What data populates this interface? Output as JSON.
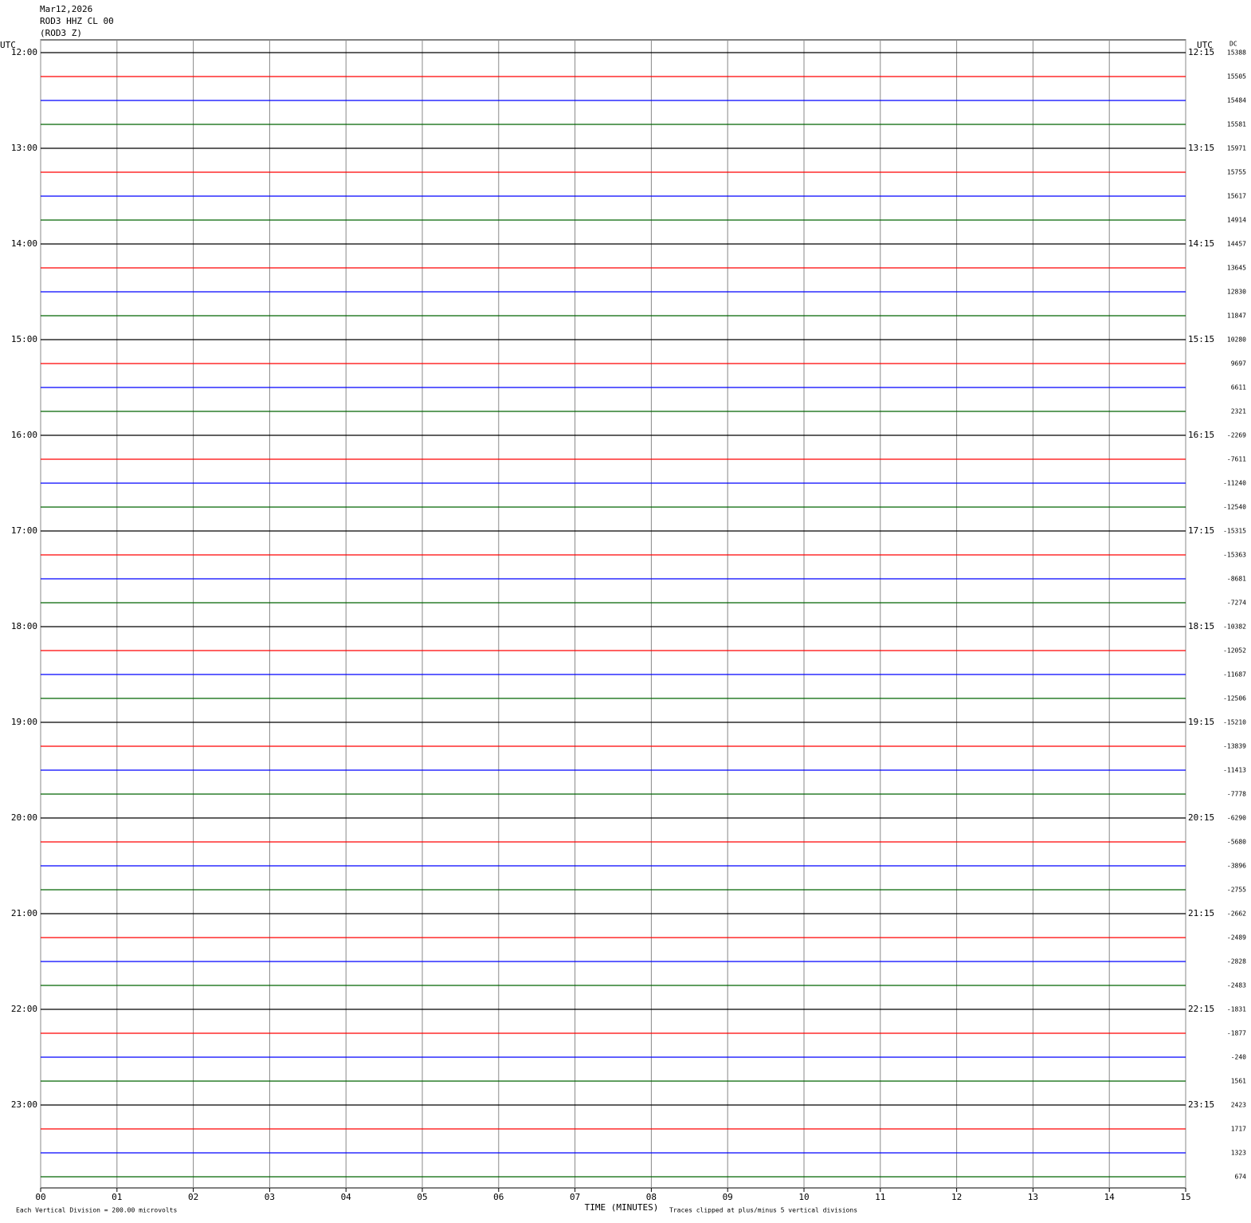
{
  "chart_data": {
    "type": "helicorder",
    "title_lines": [
      "Mar12,2026",
      "ROD3 HHZ CL 00",
      "(ROD3 Z)"
    ],
    "left_axis_label": "UTC",
    "right_axis_label": "UTC",
    "dc_label": "DC",
    "xlabel": "TIME (MINUTES)",
    "scale_note": "Each Vertical Division =  200.00 microvolts",
    "clip_note": "Traces clipped at plus/minus 5 vertical divisions",
    "xlim": [
      0,
      15
    ],
    "xticks": [
      {
        "value": 0,
        "label": "00"
      },
      {
        "value": 1,
        "label": "01"
      },
      {
        "value": 2,
        "label": "02"
      },
      {
        "value": 3,
        "label": "03"
      },
      {
        "value": 4,
        "label": "04"
      },
      {
        "value": 5,
        "label": "05"
      },
      {
        "value": 6,
        "label": "06"
      },
      {
        "value": 7,
        "label": "07"
      },
      {
        "value": 8,
        "label": "08"
      },
      {
        "value": 9,
        "label": "09"
      },
      {
        "value": 10,
        "label": "10"
      },
      {
        "value": 11,
        "label": "11"
      },
      {
        "value": 12,
        "label": "12"
      },
      {
        "value": 13,
        "label": "13"
      },
      {
        "value": 14,
        "label": "14"
      },
      {
        "value": 15,
        "label": "15"
      }
    ],
    "grid": true,
    "trace_colors": [
      "#000000",
      "#ff0000",
      "#0000ff",
      "#006400"
    ],
    "left_times": [
      "12:00",
      "13:00",
      "14:00",
      "15:00",
      "16:00",
      "17:00",
      "18:00",
      "19:00",
      "20:00",
      "21:00",
      "22:00",
      "23:00"
    ],
    "right_times": [
      "12:15",
      "13:15",
      "14:15",
      "15:15",
      "16:15",
      "17:15",
      "18:15",
      "19:15",
      "20:15",
      "21:15",
      "22:15",
      "23:15"
    ],
    "dc_values": [
      15388,
      15505,
      15484,
      15581,
      15971,
      15755,
      15617,
      14914,
      14457,
      13645,
      12830,
      11847,
      10280,
      9697,
      6611,
      2321,
      -2269,
      -7611,
      -11240,
      -12540,
      -15315,
      -15363,
      -8681,
      -7274,
      -10382,
      -12052,
      -11687,
      -12506,
      -15210,
      -13839,
      -11413,
      -7778,
      -6290,
      -5680,
      -3896,
      -2755,
      -2662,
      -2489,
      -2828,
      -2483,
      -1831,
      -1877,
      -240,
      1561,
      2423,
      1717,
      1323,
      674
    ]
  }
}
